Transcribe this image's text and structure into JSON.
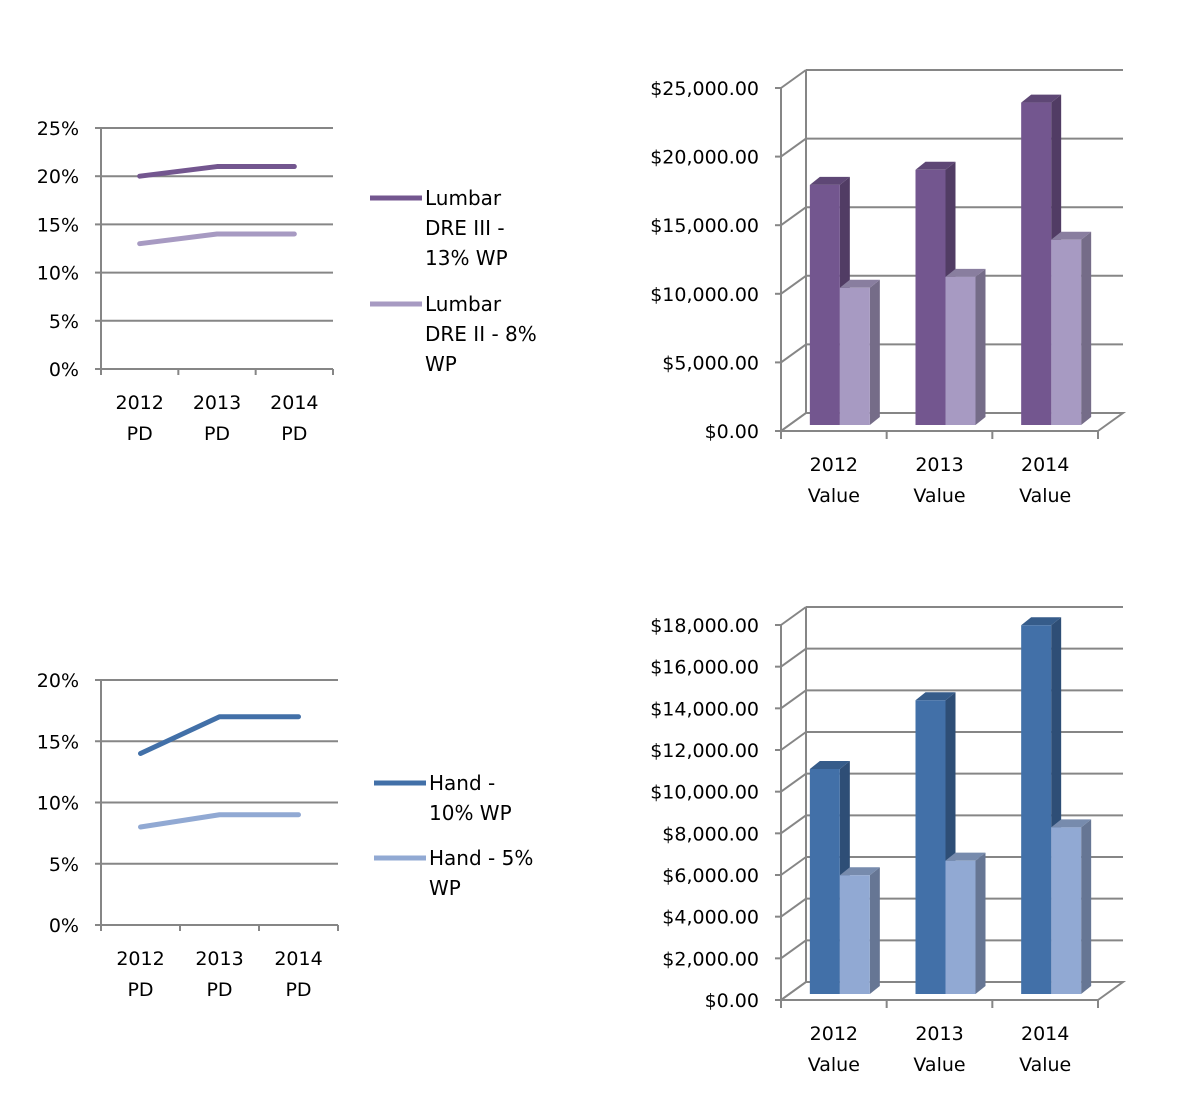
{
  "chart_data": [
    {
      "type": "line",
      "x": [
        "2012 PD",
        "2013 PD",
        "2014 PD"
      ],
      "ylim": [
        0,
        25
      ],
      "y_ticks": [
        "0%",
        "5%",
        "10%",
        "15%",
        "20%",
        "25%"
      ],
      "grid": true,
      "legend_position": "right",
      "series": [
        {
          "name": "Lumbar DRE III - 13% WP",
          "legend_lines": [
            "Lumbar",
            "DRE III -",
            "13% WP"
          ],
          "values": [
            20,
            21,
            21
          ],
          "color": "#73568f"
        },
        {
          "name": "Lumbar DRE II - 8% WP",
          "legend_lines": [
            "Lumbar",
            "DRE II - 8%",
            "WP"
          ],
          "values": [
            13,
            14,
            14
          ],
          "color": "#a79ac2"
        }
      ]
    },
    {
      "type": "bar",
      "style": "3d-clustered",
      "categories": [
        "2012 Value",
        "2013 Value",
        "2014 Value"
      ],
      "ylim": [
        0,
        25000
      ],
      "y_ticks": [
        "$0.00",
        "$5,000.00",
        "$10,000.00",
        "$15,000.00",
        "$20,000.00",
        "$25,000.00"
      ],
      "grid": true,
      "series": [
        {
          "values": [
            17500,
            18600,
            23500
          ],
          "color": "#73568f"
        },
        {
          "values": [
            10000,
            10800,
            13500
          ],
          "color": "#a79ac2"
        }
      ]
    },
    {
      "type": "line",
      "x": [
        "2012 PD",
        "2013 PD",
        "2014 PD"
      ],
      "ylim": [
        0,
        20
      ],
      "y_ticks": [
        "0%",
        "5%",
        "10%",
        "15%",
        "20%"
      ],
      "grid": true,
      "legend_position": "right",
      "series": [
        {
          "name": "Hand  - 10% WP",
          "legend_lines": [
            "Hand  -",
            "10% WP"
          ],
          "values": [
            14,
            17,
            17
          ],
          "color": "#4270a8"
        },
        {
          "name": "Hand - 5% WP",
          "legend_lines": [
            "Hand - 5%",
            "WP"
          ],
          "values": [
            8,
            9,
            9
          ],
          "color": "#91a9d3"
        }
      ]
    },
    {
      "type": "bar",
      "style": "3d-clustered",
      "categories": [
        "2012 Value",
        "2013 Value",
        "2014 Value"
      ],
      "ylim": [
        0,
        18000
      ],
      "y_ticks": [
        "$0.00",
        "$2,000.00",
        "$4,000.00",
        "$6,000.00",
        "$8,000.00",
        "$10,000.00",
        "$12,000.00",
        "$14,000.00",
        "$16,000.00",
        "$18,000.00"
      ],
      "grid": true,
      "series": [
        {
          "values": [
            10800,
            14100,
            17700
          ],
          "color": "#4270a8"
        },
        {
          "values": [
            5700,
            6400,
            8000
          ],
          "color": "#91a9d3"
        }
      ]
    }
  ]
}
